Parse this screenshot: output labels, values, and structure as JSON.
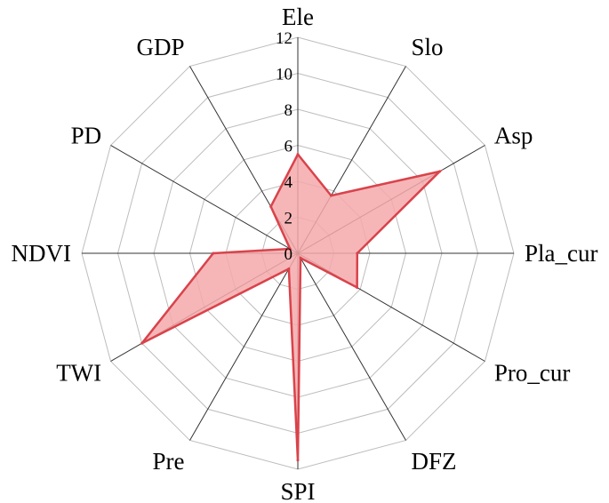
{
  "chart_data": {
    "type": "radar",
    "categories": [
      "Ele",
      "Slo",
      "Asp",
      "Pla_cur",
      "Pro_cur",
      "DFZ",
      "SPI",
      "Pre",
      "TWI",
      "NDVI",
      "PD",
      "GDP"
    ],
    "series": [
      {
        "values": [
          5.5,
          3.7,
          9.1,
          3.3,
          3.8,
          0.3,
          11.5,
          1.0,
          10.0,
          4.7,
          0.5,
          3.0
        ]
      }
    ],
    "rlim": [
      0,
      12
    ],
    "ticks": [
      0,
      2,
      4,
      6,
      8,
      10,
      12
    ],
    "tick_labels": [
      "0",
      "2",
      "4",
      "6",
      "8",
      "10",
      "12"
    ],
    "grid": true,
    "colors": {
      "fill": "#f4a9ab",
      "stroke": "#d9434b",
      "grid": "#bdbdbd",
      "spoke": "#333333"
    }
  }
}
